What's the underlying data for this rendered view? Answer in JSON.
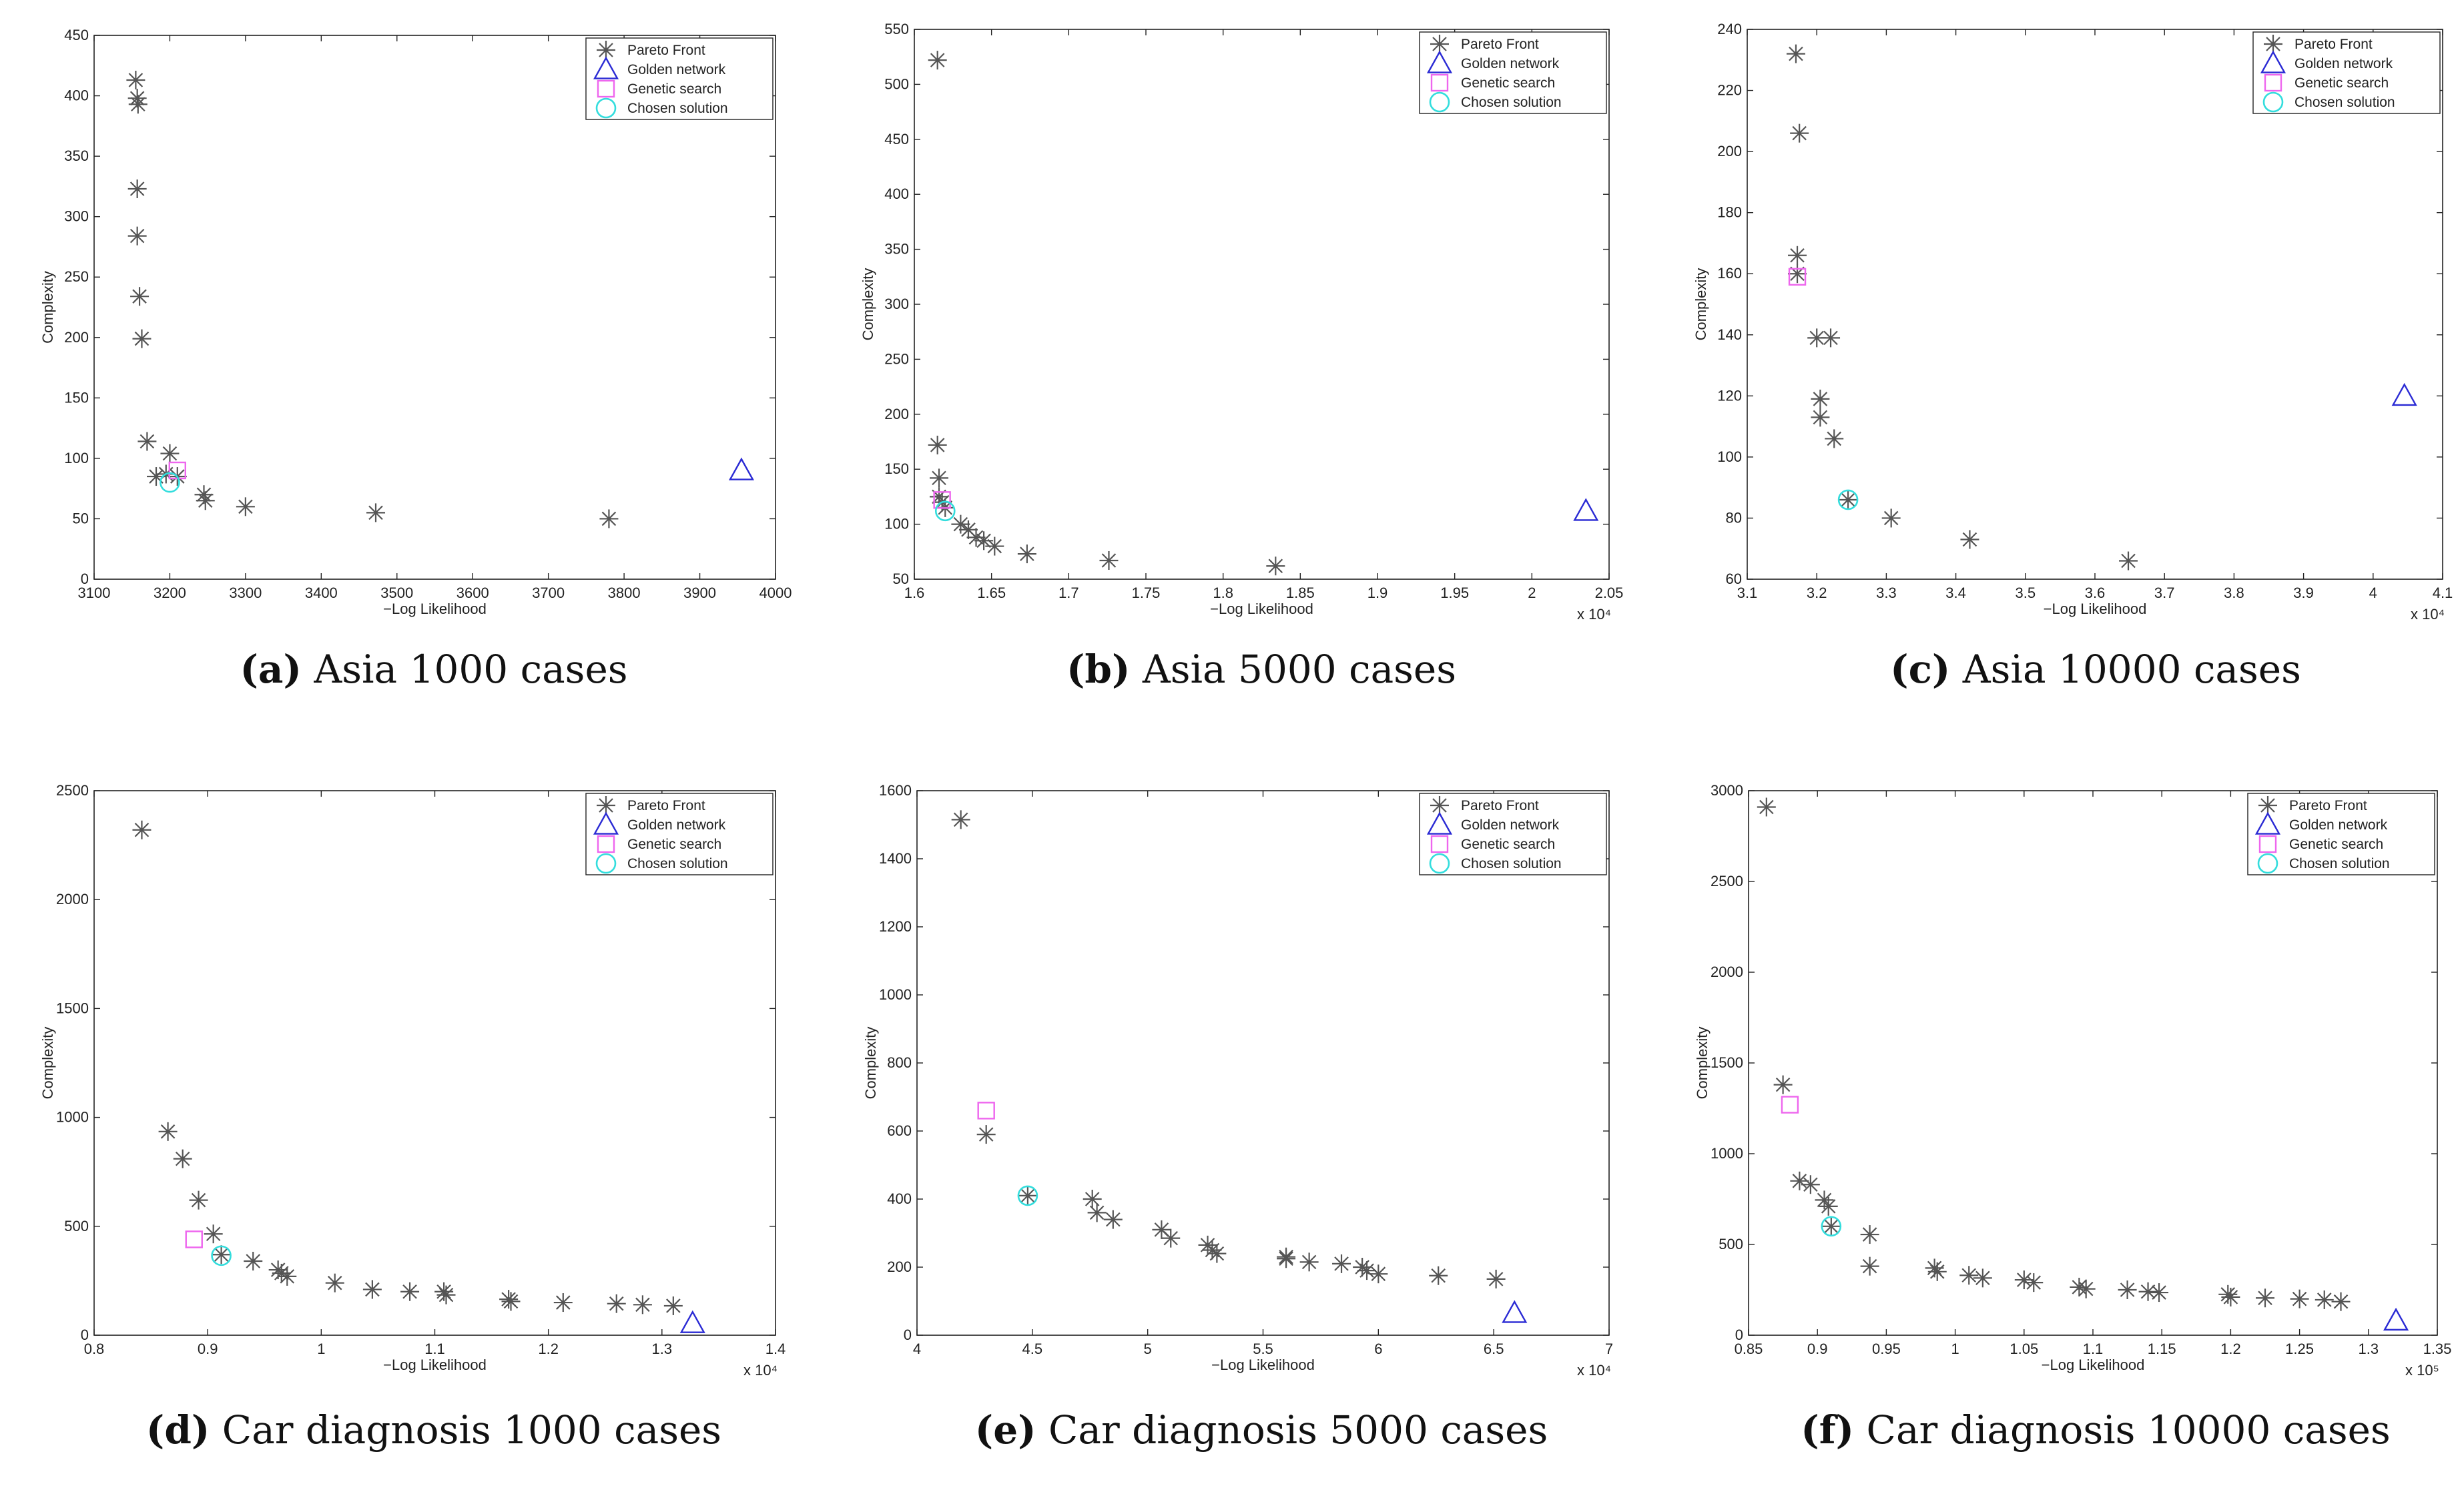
{
  "colors": {
    "pareto": "#555555",
    "golden": "#2a2ad4",
    "genetic": "#ee66ee",
    "chosen": "#33dddd",
    "axis": "#222222"
  },
  "chart_data": [
    {
      "id": "a",
      "type": "scatter",
      "caption_letter": "(a)",
      "caption_text": "Asia 1000 cases",
      "xlabel": "−Log Likelihood",
      "ylabel": "Complexity",
      "xlim": [
        3100,
        4000
      ],
      "ylim": [
        0,
        450
      ],
      "xticks": [
        3100,
        3200,
        3300,
        3400,
        3500,
        3600,
        3700,
        3800,
        3900,
        4000
      ],
      "yticks": [
        0,
        50,
        100,
        150,
        200,
        250,
        300,
        350,
        400,
        450
      ],
      "xtick_labels": [
        "3100",
        "3200",
        "3300",
        "3400",
        "3500",
        "3600",
        "3700",
        "3800",
        "3900",
        "4000"
      ],
      "ytick_labels": [
        "0",
        "50",
        "100",
        "150",
        "200",
        "250",
        "300",
        "350",
        "400",
        "450"
      ],
      "exponent": "",
      "legend": [
        "Pareto Front",
        "Golden network",
        "Genetic search",
        "Chosen solution"
      ],
      "legend_position": "top-right",
      "series": [
        {
          "name": "Pareto Front",
          "marker": "star",
          "points": [
            [
              3155,
              413
            ],
            [
              3157,
              398
            ],
            [
              3158,
              393
            ],
            [
              3157,
              323
            ],
            [
              3157,
              284
            ],
            [
              3160,
              234
            ],
            [
              3163,
              199
            ],
            [
              3170,
              114
            ],
            [
              3182,
              85
            ],
            [
              3200,
              104
            ],
            [
              3195,
              87
            ],
            [
              3210,
              85
            ],
            [
              3245,
              70
            ],
            [
              3247,
              65
            ],
            [
              3300,
              60
            ],
            [
              3472,
              55
            ],
            [
              3780,
              50
            ]
          ]
        },
        {
          "name": "Golden network",
          "marker": "triangle",
          "points": [
            [
              3955,
              90
            ]
          ]
        },
        {
          "name": "Genetic search",
          "marker": "square",
          "points": [
            [
              3210,
              90
            ]
          ]
        },
        {
          "name": "Chosen solution",
          "marker": "circle",
          "points": [
            [
              3200,
              80
            ]
          ]
        }
      ]
    },
    {
      "id": "b",
      "type": "scatter",
      "caption_letter": "(b)",
      "caption_text": "Asia 5000 cases",
      "xlabel": "−Log Likelihood",
      "ylabel": "Complexity",
      "xlim": [
        1.6,
        2.05
      ],
      "ylim": [
        50,
        550
      ],
      "xticks": [
        1.6,
        1.65,
        1.7,
        1.75,
        1.8,
        1.85,
        1.9,
        1.95,
        2.0,
        2.05
      ],
      "yticks": [
        50,
        100,
        150,
        200,
        250,
        300,
        350,
        400,
        450,
        500,
        550
      ],
      "xtick_labels": [
        "1.6",
        "1.65",
        "1.7",
        "1.75",
        "1.8",
        "1.85",
        "1.9",
        "1.95",
        "2",
        "2.05"
      ],
      "ytick_labels": [
        "50",
        "100",
        "150",
        "200",
        "250",
        "300",
        "350",
        "400",
        "450",
        "500",
        "550"
      ],
      "exponent": "x 10⁴",
      "legend": [
        "Pareto Front",
        "Golden network",
        "Genetic search",
        "Chosen solution"
      ],
      "legend_position": "top-right",
      "series": [
        {
          "name": "Pareto Front",
          "marker": "star",
          "points": [
            [
              1.615,
              522
            ],
            [
              1.615,
              172
            ],
            [
              1.616,
              142
            ],
            [
              1.616,
              125
            ],
            [
              1.618,
              120
            ],
            [
              1.62,
              115
            ],
            [
              1.63,
              100
            ],
            [
              1.635,
              95
            ],
            [
              1.64,
              88
            ],
            [
              1.645,
              85
            ],
            [
              1.652,
              80
            ],
            [
              1.673,
              73
            ],
            [
              1.726,
              67
            ],
            [
              1.834,
              62
            ]
          ]
        },
        {
          "name": "Golden network",
          "marker": "triangle",
          "points": [
            [
              2.035,
              112
            ]
          ]
        },
        {
          "name": "Genetic search",
          "marker": "square",
          "points": [
            [
              1.618,
              122
            ]
          ]
        },
        {
          "name": "Chosen solution",
          "marker": "circle",
          "points": [
            [
              1.62,
              112
            ]
          ]
        }
      ]
    },
    {
      "id": "c",
      "type": "scatter",
      "caption_letter": "(c)",
      "caption_text": "Asia 10000 cases",
      "xlabel": "−Log Likelihood",
      "ylabel": "Complexity",
      "xlim": [
        3.1,
        4.1
      ],
      "ylim": [
        60,
        240
      ],
      "xticks": [
        3.1,
        3.2,
        3.3,
        3.4,
        3.5,
        3.6,
        3.7,
        3.8,
        3.9,
        4.0,
        4.1
      ],
      "yticks": [
        60,
        80,
        100,
        120,
        140,
        160,
        180,
        200,
        220,
        240
      ],
      "xtick_labels": [
        "3.1",
        "3.2",
        "3.3",
        "3.4",
        "3.5",
        "3.6",
        "3.7",
        "3.8",
        "3.9",
        "4",
        "4.1"
      ],
      "ytick_labels": [
        "60",
        "80",
        "100",
        "120",
        "140",
        "160",
        "180",
        "200",
        "220",
        "240"
      ],
      "exponent": "x 10⁴",
      "legend": [
        "Pareto Front",
        "Golden network",
        "Genetic search",
        "Chosen solution"
      ],
      "legend_position": "top-right",
      "series": [
        {
          "name": "Pareto Front",
          "marker": "star",
          "points": [
            [
              3.17,
              232
            ],
            [
              3.175,
              206
            ],
            [
              3.172,
              166
            ],
            [
              3.172,
              160
            ],
            [
              3.2,
              139
            ],
            [
              3.22,
              139
            ],
            [
              3.205,
              119
            ],
            [
              3.205,
              113
            ],
            [
              3.225,
              106
            ],
            [
              3.245,
              86
            ],
            [
              3.307,
              80
            ],
            [
              3.42,
              73
            ],
            [
              3.648,
              66
            ]
          ]
        },
        {
          "name": "Golden network",
          "marker": "triangle",
          "points": [
            [
              4.045,
              120
            ]
          ]
        },
        {
          "name": "Genetic search",
          "marker": "square",
          "points": [
            [
              3.172,
              159
            ]
          ]
        },
        {
          "name": "Chosen solution",
          "marker": "circle",
          "points": [
            [
              3.245,
              86
            ]
          ]
        }
      ]
    },
    {
      "id": "d",
      "type": "scatter",
      "caption_letter": "(d)",
      "caption_text": "Car diagnosis 1000 cases",
      "xlabel": "−Log Likelihood",
      "ylabel": "Complexity",
      "xlim": [
        0.8,
        1.4
      ],
      "ylim": [
        0,
        2500
      ],
      "xticks": [
        0.8,
        0.9,
        1.0,
        1.1,
        1.2,
        1.3,
        1.4
      ],
      "yticks": [
        0,
        500,
        1000,
        1500,
        2000,
        2500
      ],
      "xtick_labels": [
        "0.8",
        "0.9",
        "1",
        "1.1",
        "1.2",
        "1.3",
        "1.4"
      ],
      "ytick_labels": [
        "0",
        "500",
        "1000",
        "1500",
        "2000",
        "2500"
      ],
      "exponent": "x 10⁴",
      "legend": [
        "Pareto Front",
        "Golden network",
        "Genetic search",
        "Chosen solution"
      ],
      "legend_position": "top-right",
      "series": [
        {
          "name": "Pareto Front",
          "marker": "star",
          "points": [
            [
              0.842,
              2320
            ],
            [
              0.865,
              935
            ],
            [
              0.878,
              810
            ],
            [
              0.892,
              620
            ],
            [
              0.905,
              465
            ],
            [
              0.912,
              370
            ],
            [
              0.94,
              340
            ],
            [
              0.962,
              300
            ],
            [
              0.965,
              285
            ],
            [
              0.97,
              270
            ],
            [
              1.012,
              240
            ],
            [
              1.045,
              210
            ],
            [
              1.078,
              200
            ],
            [
              1.108,
              200
            ],
            [
              1.11,
              185
            ],
            [
              1.165,
              165
            ],
            [
              1.167,
              155
            ],
            [
              1.213,
              150
            ],
            [
              1.26,
              145
            ],
            [
              1.283,
              140
            ],
            [
              1.31,
              135
            ]
          ]
        },
        {
          "name": "Golden network",
          "marker": "triangle",
          "points": [
            [
              1.327,
              55
            ]
          ]
        },
        {
          "name": "Genetic search",
          "marker": "square",
          "points": [
            [
              0.888,
              440
            ]
          ]
        },
        {
          "name": "Chosen solution",
          "marker": "circle",
          "points": [
            [
              0.912,
              365
            ]
          ]
        }
      ]
    },
    {
      "id": "e",
      "type": "scatter",
      "caption_letter": "(e)",
      "caption_text": "Car diagnosis 5000 cases",
      "xlabel": "−Log Likelihood",
      "ylabel": "Complexity",
      "xlim": [
        4,
        7
      ],
      "ylim": [
        0,
        1600
      ],
      "xticks": [
        4,
        4.5,
        5,
        5.5,
        6,
        6.5,
        7
      ],
      "yticks": [
        0,
        200,
        400,
        600,
        800,
        1000,
        1200,
        1400,
        1600
      ],
      "xtick_labels": [
        "4",
        "4.5",
        "5",
        "5.5",
        "6",
        "6.5",
        "7"
      ],
      "ytick_labels": [
        "0",
        "200",
        "400",
        "600",
        "800",
        "1000",
        "1200",
        "1400",
        "1600"
      ],
      "exponent": "x 10⁴",
      "legend": [
        "Pareto Front",
        "Golden network",
        "Genetic search",
        "Chosen solution"
      ],
      "legend_position": "top-right",
      "series": [
        {
          "name": "Pareto Front",
          "marker": "star",
          "points": [
            [
              4.19,
              1515
            ],
            [
              4.3,
              590
            ],
            [
              4.48,
              410
            ],
            [
              4.76,
              400
            ],
            [
              4.78,
              360
            ],
            [
              4.85,
              340
            ],
            [
              5.06,
              310
            ],
            [
              5.1,
              285
            ],
            [
              5.26,
              265
            ],
            [
              5.28,
              250
            ],
            [
              5.3,
              240
            ],
            [
              5.6,
              225
            ],
            [
              5.6,
              230
            ],
            [
              5.7,
              215
            ],
            [
              5.84,
              210
            ],
            [
              5.93,
              200
            ],
            [
              5.95,
              190
            ],
            [
              6.0,
              180
            ],
            [
              6.26,
              175
            ],
            [
              6.51,
              165
            ]
          ]
        },
        {
          "name": "Golden network",
          "marker": "triangle",
          "points": [
            [
              6.59,
              65
            ]
          ]
        },
        {
          "name": "Genetic search",
          "marker": "square",
          "points": [
            [
              4.3,
              660
            ]
          ]
        },
        {
          "name": "Chosen solution",
          "marker": "circle",
          "points": [
            [
              4.48,
              410
            ]
          ]
        }
      ]
    },
    {
      "id": "f",
      "type": "scatter",
      "caption_letter": "(f)",
      "caption_text": "Car diagnosis 10000 cases",
      "xlabel": "−Log Likelihood",
      "ylabel": "Complexity",
      "xlim": [
        0.85,
        1.35
      ],
      "ylim": [
        0,
        3000
      ],
      "xticks": [
        0.85,
        0.9,
        0.95,
        1.0,
        1.05,
        1.1,
        1.15,
        1.2,
        1.25,
        1.3,
        1.35
      ],
      "yticks": [
        0,
        500,
        1000,
        1500,
        2000,
        2500,
        3000
      ],
      "xtick_labels": [
        "0.85",
        "0.9",
        "0.95",
        "1",
        "1.05",
        "1.1",
        "1.15",
        "1.2",
        "1.25",
        "1.3",
        "1.35"
      ],
      "ytick_labels": [
        "0",
        "500",
        "1000",
        "1500",
        "2000",
        "2500",
        "3000"
      ],
      "exponent": "x 10⁵",
      "legend": [
        "Pareto Front",
        "Golden network",
        "Genetic search",
        "Chosen solution"
      ],
      "legend_position": "top-right",
      "series": [
        {
          "name": "Pareto Front",
          "marker": "star",
          "points": [
            [
              0.863,
              2910
            ],
            [
              0.875,
              1380
            ],
            [
              0.887,
              850
            ],
            [
              0.895,
              830
            ],
            [
              0.905,
              745
            ],
            [
              0.908,
              710
            ],
            [
              0.91,
              600
            ],
            [
              0.938,
              555
            ],
            [
              0.938,
              380
            ],
            [
              0.985,
              370
            ],
            [
              0.987,
              350
            ],
            [
              1.01,
              330
            ],
            [
              1.02,
              315
            ],
            [
              1.05,
              305
            ],
            [
              1.057,
              290
            ],
            [
              1.09,
              265
            ],
            [
              1.095,
              255
            ],
            [
              1.125,
              250
            ],
            [
              1.14,
              240
            ],
            [
              1.148,
              235
            ],
            [
              1.198,
              225
            ],
            [
              1.2,
              210
            ],
            [
              1.225,
              205
            ],
            [
              1.25,
              200
            ],
            [
              1.268,
              195
            ],
            [
              1.28,
              185
            ]
          ]
        },
        {
          "name": "Golden network",
          "marker": "triangle",
          "points": [
            [
              1.32,
              80
            ]
          ]
        },
        {
          "name": "Genetic search",
          "marker": "square",
          "points": [
            [
              0.88,
              1270
            ]
          ]
        },
        {
          "name": "Chosen solution",
          "marker": "circle",
          "points": [
            [
              0.91,
              600
            ]
          ]
        }
      ]
    }
  ]
}
